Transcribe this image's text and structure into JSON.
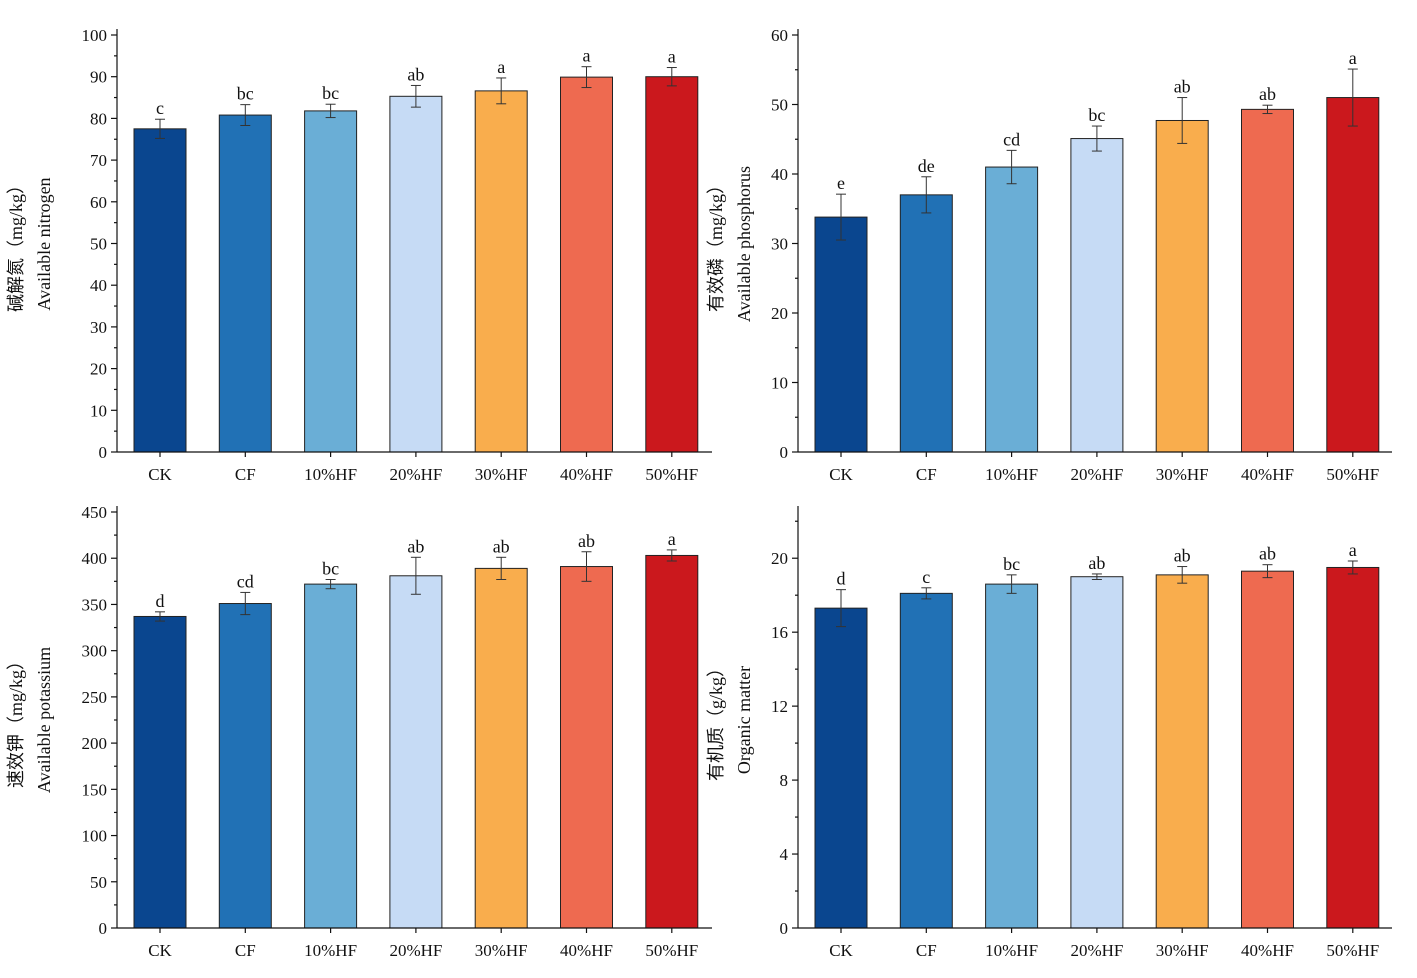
{
  "chart_data": [
    {
      "type": "bar",
      "ylabel_lines": [
        "碱解氮（mg/kg）",
        "Available nitrogen"
      ],
      "categories": [
        "CK",
        "CF",
        "10%HF",
        "20%HF",
        "30%HF",
        "40%HF",
        "50%HF"
      ],
      "values": [
        77.5,
        80.8,
        81.8,
        85.3,
        86.6,
        89.9,
        90.0
      ],
      "errors": [
        2.3,
        2.5,
        1.6,
        2.6,
        3.1,
        2.5,
        2.2
      ],
      "significance": [
        "c",
        "bc",
        "bc",
        "ab",
        "a",
        "a",
        "a"
      ],
      "ylim": [
        0,
        100
      ],
      "yticks": [
        0,
        10,
        20,
        30,
        40,
        50,
        60,
        70,
        80,
        90,
        100
      ]
    },
    {
      "type": "bar",
      "ylabel_lines": [
        "有效磷（mg/kg）",
        "Available phosphorus"
      ],
      "categories": [
        "CK",
        "CF",
        "10%HF",
        "20%HF",
        "30%HF",
        "40%HF",
        "50%HF"
      ],
      "values": [
        33.8,
        37.0,
        41.0,
        45.1,
        47.7,
        49.3,
        51.0
      ],
      "errors": [
        3.3,
        2.6,
        2.4,
        1.8,
        3.3,
        0.6,
        4.1
      ],
      "significance": [
        "e",
        "de",
        "cd",
        "bc",
        "ab",
        "ab",
        "a"
      ],
      "ylim": [
        0,
        60
      ],
      "yticks": [
        0,
        10,
        20,
        30,
        40,
        50,
        60
      ]
    },
    {
      "type": "bar",
      "ylabel_lines": [
        "速效钾（mg/kg）",
        "Available potassium"
      ],
      "categories": [
        "CK",
        "CF",
        "10%HF",
        "20%HF",
        "30%HF",
        "40%HF",
        "50%HF"
      ],
      "values": [
        337,
        351,
        372,
        381,
        389,
        391,
        403
      ],
      "errors": [
        5,
        12,
        5,
        20,
        12,
        16,
        6
      ],
      "significance": [
        "d",
        "cd",
        "bc",
        "ab",
        "ab",
        "ab",
        "a"
      ],
      "ylim": [
        0,
        450
      ],
      "yticks": [
        0,
        50,
        100,
        150,
        200,
        250,
        300,
        350,
        400,
        450
      ]
    },
    {
      "type": "bar",
      "ylabel_lines": [
        "有机质（g/kg）",
        "Organic matter"
      ],
      "categories": [
        "CK",
        "CF",
        "10%HF",
        "20%HF",
        "30%HF",
        "40%HF",
        "50%HF"
      ],
      "values": [
        17.3,
        18.1,
        18.6,
        19.0,
        19.1,
        19.3,
        19.5
      ],
      "errors": [
        1.0,
        0.3,
        0.5,
        0.15,
        0.45,
        0.35,
        0.35
      ],
      "significance": [
        "d",
        "c",
        "bc",
        "ab",
        "ab",
        "ab",
        "a"
      ],
      "ylim": [
        0,
        22.5
      ],
      "yticks": [
        0,
        4,
        8,
        12,
        16,
        20
      ]
    }
  ],
  "colors": [
    "#0a468f",
    "#2171b5",
    "#6aaed6",
    "#c6dbf5",
    "#f9ad4d",
    "#ee6a50",
    "#cb181d"
  ]
}
